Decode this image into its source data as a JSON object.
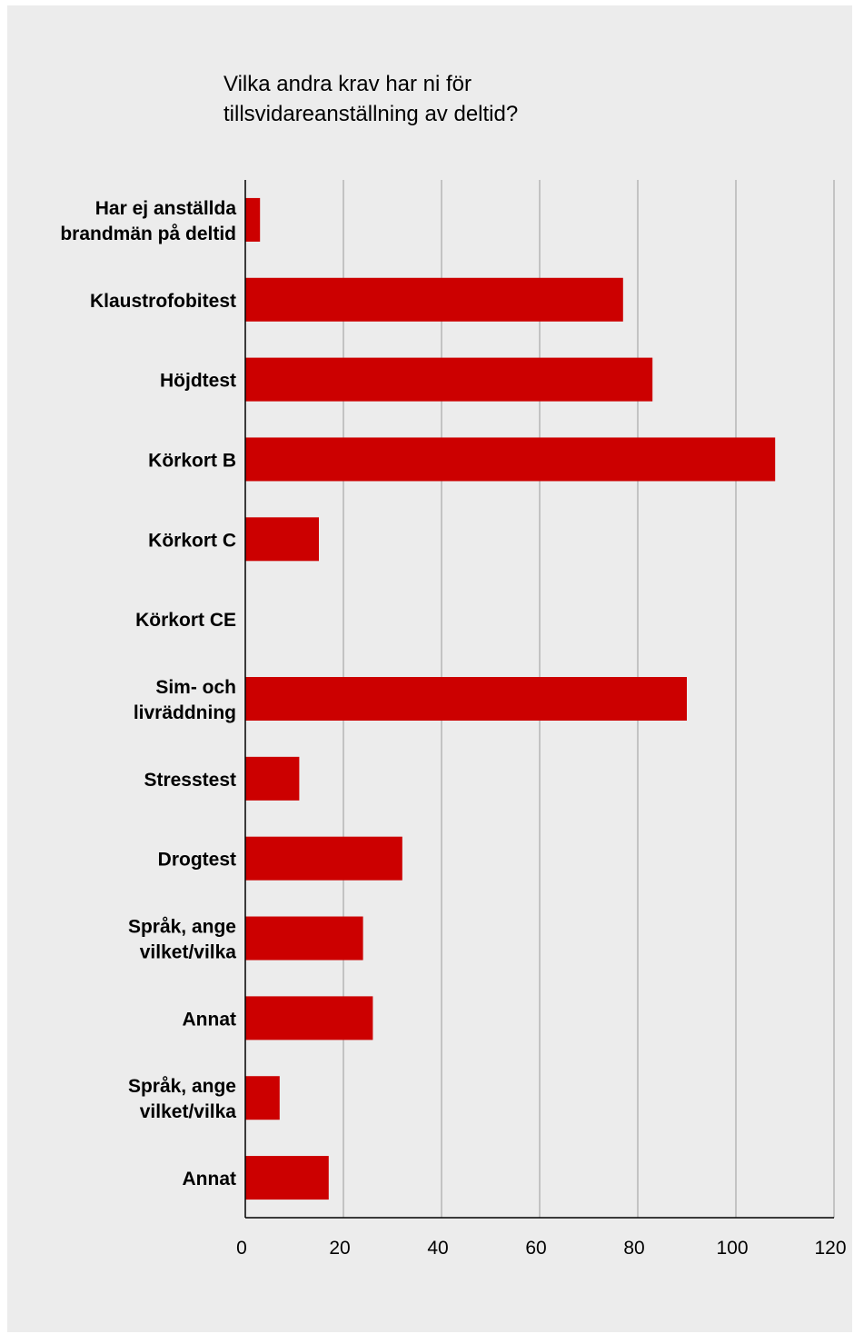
{
  "chart_data": {
    "type": "bar",
    "orientation": "horizontal",
    "title_lines": [
      "Vilka andra krav har ni för",
      "tillsvidareanställning av deltid?"
    ],
    "categories": [
      [
        "Har ej anställda",
        "brandmän på deltid"
      ],
      [
        "Klaustrofobitest"
      ],
      [
        "Höjdtest"
      ],
      [
        "Körkort B"
      ],
      [
        "Körkort C"
      ],
      [
        "Körkort CE"
      ],
      [
        "Sim- och",
        "livräddning"
      ],
      [
        "Stresstest"
      ],
      [
        "Drogtest"
      ],
      [
        "Språk, ange",
        "vilket/vilka"
      ],
      [
        "Annat"
      ],
      [
        "Språk, ange",
        "vilket/vilka"
      ],
      [
        "Annat"
      ]
    ],
    "values": [
      3,
      77,
      83,
      108,
      15,
      0,
      90,
      11,
      32,
      24,
      26,
      7,
      17
    ],
    "xlim": [
      0,
      120
    ],
    "x_ticks": [
      "0",
      "20",
      "40",
      "60",
      "80",
      "100",
      "120"
    ],
    "grid": "vertical",
    "legend": "none",
    "bar_color": "#cc0000"
  }
}
